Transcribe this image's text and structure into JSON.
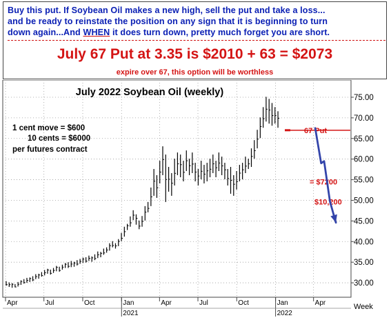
{
  "header": {
    "note_line1": "Buy this put. If Soybean Oil makes a new high, sell the put and take a loss...",
    "note_line2": "and be ready to reinstate the position on any sign that it is beginning to turn",
    "note_line3_a": "down again...And ",
    "note_line3_b": "WHEN",
    "note_line3_c": " it does turn down, pretty much forget you are ",
    "note_line3_d": "short.",
    "headline": "July 67 Put at 3.35 is $2010 + 63 = $2073",
    "subline": "expire over 67, this option will be worthless"
  },
  "colors": {
    "note_text": "#0a1fb4",
    "headline": "#d41414",
    "bars": "#000000",
    "projection": "#3344aa",
    "annotation": "#d41414"
  },
  "chart_data": {
    "type": "ohlc",
    "title": "July 2022 Soybean Oil (weekly)",
    "left_notes": [
      "1 cent move = $600",
      "10 cents = $6000",
      "per futures contract"
    ],
    "xlabel": "Week",
    "x_ticks": [
      "Apr",
      "Jul",
      "Oct",
      "Jan",
      "Apr",
      "Jul",
      "Oct",
      "Jan",
      "Apr"
    ],
    "year_labels": [
      "2021",
      "2022"
    ],
    "y_ticks": [
      "30.00",
      "35.00",
      "40.00",
      "45.00",
      "50.00",
      "55.00",
      "60.00",
      "65.00",
      "70.00",
      "75.00"
    ],
    "ylim": [
      27.5,
      77
    ],
    "grid": "dotted",
    "period_start": "2020-04-01",
    "period_end": "2022-06-01",
    "series": [
      {
        "name": "weekly bars (high, low)",
        "bars": [
          [
            30.4,
            29.3
          ],
          [
            30.1,
            29.0
          ],
          [
            29.9,
            28.8
          ],
          [
            29.7,
            28.9
          ],
          [
            30.2,
            29.1
          ],
          [
            30.6,
            29.5
          ],
          [
            30.9,
            29.8
          ],
          [
            31.2,
            30.0
          ],
          [
            31.3,
            30.2
          ],
          [
            31.6,
            30.4
          ],
          [
            32.1,
            30.9
          ],
          [
            32.2,
            31.0
          ],
          [
            32.6,
            31.5
          ],
          [
            33.1,
            31.8
          ],
          [
            33.4,
            32.2
          ],
          [
            33.2,
            32.0
          ],
          [
            33.6,
            32.4
          ],
          [
            34.1,
            32.8
          ],
          [
            33.9,
            32.7
          ],
          [
            34.4,
            33.2
          ],
          [
            34.8,
            33.6
          ],
          [
            35.0,
            33.6
          ],
          [
            35.3,
            33.8
          ],
          [
            35.1,
            33.9
          ],
          [
            35.5,
            34.2
          ],
          [
            35.8,
            34.6
          ],
          [
            36.1,
            34.8
          ],
          [
            36.2,
            34.9
          ],
          [
            36.6,
            35.3
          ],
          [
            36.4,
            35.1
          ],
          [
            36.9,
            35.5
          ],
          [
            37.6,
            36.0
          ],
          [
            37.5,
            36.2
          ],
          [
            38.3,
            36.8
          ],
          [
            38.6,
            37.3
          ],
          [
            39.6,
            37.8
          ],
          [
            40.1,
            38.6
          ],
          [
            39.6,
            38.3
          ],
          [
            40.6,
            38.9
          ],
          [
            42.1,
            40.1
          ],
          [
            43.6,
            41.2
          ],
          [
            44.3,
            42.8
          ],
          [
            46.1,
            43.6
          ],
          [
            47.6,
            45.2
          ],
          [
            46.6,
            44.1
          ],
          [
            45.1,
            43.0
          ],
          [
            46.2,
            43.6
          ],
          [
            48.6,
            45.1
          ],
          [
            49.6,
            47.1
          ],
          [
            53.1,
            48.6
          ],
          [
            57.6,
            51.1
          ],
          [
            56.1,
            50.6
          ],
          [
            59.6,
            54.1
          ],
          [
            63.1,
            56.1
          ],
          [
            61.1,
            49.6
          ],
          [
            58.1,
            52.1
          ],
          [
            56.6,
            51.1
          ],
          [
            60.1,
            53.6
          ],
          [
            61.6,
            56.1
          ],
          [
            61.1,
            55.6
          ],
          [
            59.6,
            54.6
          ],
          [
            62.1,
            57.1
          ],
          [
            60.1,
            56.1
          ],
          [
            61.6,
            56.6
          ],
          [
            59.1,
            54.6
          ],
          [
            57.6,
            53.6
          ],
          [
            59.6,
            55.1
          ],
          [
            58.6,
            54.1
          ],
          [
            59.1,
            54.6
          ],
          [
            60.1,
            55.6
          ],
          [
            61.1,
            56.6
          ],
          [
            59.6,
            55.6
          ],
          [
            61.6,
            57.1
          ],
          [
            60.6,
            56.1
          ],
          [
            59.1,
            55.1
          ],
          [
            57.6,
            53.6
          ],
          [
            58.1,
            51.6
          ],
          [
            56.1,
            51.1
          ],
          [
            57.1,
            52.6
          ],
          [
            58.6,
            54.6
          ],
          [
            59.1,
            55.1
          ],
          [
            60.6,
            56.6
          ],
          [
            60.1,
            57.6
          ],
          [
            62.6,
            58.1
          ],
          [
            64.6,
            60.1
          ],
          [
            67.1,
            62.6
          ],
          [
            70.1,
            65.1
          ],
          [
            72.6,
            67.6
          ],
          [
            75.1,
            69.1
          ],
          [
            74.6,
            68.6
          ],
          [
            73.6,
            68.1
          ],
          [
            72.6,
            68.6
          ],
          [
            71.6,
            67.6
          ]
        ]
      }
    ],
    "annotations": [
      {
        "label": "67 Put",
        "value": 67
      },
      {
        "label": "= $7200",
        "value": 54.5
      },
      {
        "label": "$10,200",
        "value": 49.5
      }
    ],
    "projection": {
      "name": "projected decline",
      "points": [
        [
          "2022-04-05",
          67.5
        ],
        [
          "2022-04-19",
          59.0
        ],
        [
          "2022-04-26",
          59.5
        ],
        [
          "2022-05-10",
          49.7
        ],
        [
          "2022-05-24",
          44.6
        ]
      ]
    }
  }
}
